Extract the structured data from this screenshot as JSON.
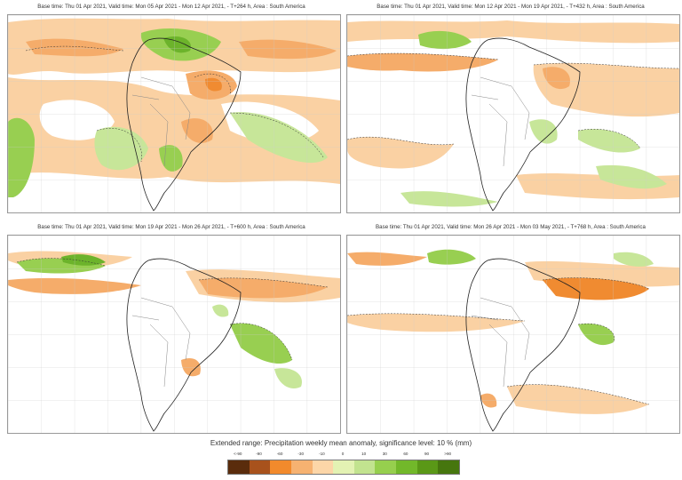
{
  "panels": [
    {
      "title": "Base time: Thu 01 Apr 2021, Valid time: Mon 05 Apr 2021 - Mon 12 Apr 2021, - T+264 h, Area : South America"
    },
    {
      "title": "Base time: Thu 01 Apr 2021, Valid time: Mon 12 Apr 2021 - Mon 19 Apr 2021, - T+432 h, Area : South America"
    },
    {
      "title": "Base time: Thu 01 Apr 2021, Valid time: Mon 19 Apr 2021 - Mon 26 Apr 2021, - T+600 h, Area : South America"
    },
    {
      "title": "Base time: Thu 01 Apr 2021, Valid time: Mon 26 Apr 2021 - Mon 03 May 2021, - T+768 h, Area : South America"
    }
  ],
  "legend": {
    "title": "Extended range: Precipitation weekly mean anomaly, significance level: 10 % (mm)",
    "ticks": [
      "<-90",
      "-90",
      "-60",
      "-30",
      "-10",
      "0",
      "10",
      "30",
      "60",
      "90",
      ">90"
    ],
    "colors": [
      "#5a2c0c",
      "#a8521c",
      "#f28a2c",
      "#f6b271",
      "#fcd6a8",
      "#e3f2b3",
      "#c2e38f",
      "#96cf4e",
      "#72b82a",
      "#5a9817",
      "#46760e"
    ]
  },
  "palette": {
    "dry_light": "#fad1a3",
    "dry_mid": "#f5ac6a",
    "dry_strong": "#f08b31",
    "wet_light": "#c7e699",
    "wet_mid": "#98cf51",
    "wet_strong": "#6cb32b",
    "coast": "#222222",
    "border": "#888888",
    "grid": "#cccccc"
  }
}
